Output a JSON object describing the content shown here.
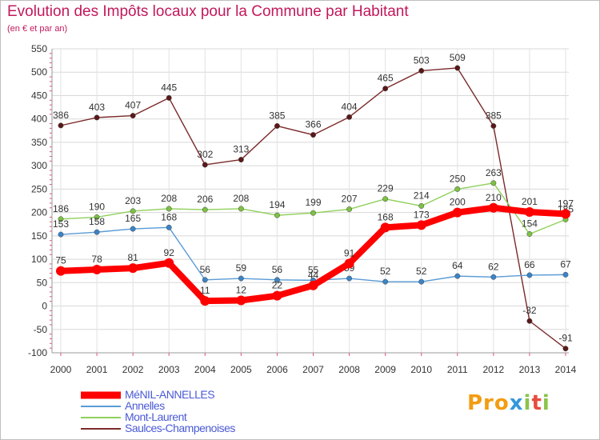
{
  "title": "Evolution des Impôts locaux pour la Commune par Habitant",
  "subtitle": "(en € et par an)",
  "logo": {
    "text": "Proxiti",
    "colors": [
      "#f39c12",
      "#3498db",
      "#8bc34a",
      "#e74c3c"
    ]
  },
  "chart_data": {
    "type": "line",
    "title": "Evolution des Impôts locaux pour la Commune par Habitant",
    "subtitle": "(en € et par an)",
    "x": [
      "2000",
      "2001",
      "2002",
      "2003",
      "2004",
      "2005",
      "2006",
      "2007",
      "2008",
      "2009",
      "2010",
      "2011",
      "2012",
      "2013",
      "2014"
    ],
    "ylim": [
      -100,
      550
    ],
    "yticks": [
      -100,
      -50,
      0,
      50,
      100,
      150,
      200,
      250,
      300,
      350,
      400,
      450,
      500,
      550
    ],
    "grid": true,
    "legend_position": "bottom-left",
    "series": [
      {
        "name": "Saulces-Champenoises",
        "color": "#7b2a2a",
        "marker": "#5a1818",
        "values": [
          386,
          403,
          407,
          445,
          302,
          313,
          385,
          366,
          404,
          465,
          503,
          509,
          385,
          -32,
          -91
        ]
      },
      {
        "name": "Mont-Laurent",
        "color": "#8fd05a",
        "marker": "#7cc242",
        "values": [
          186,
          190,
          203,
          208,
          206,
          208,
          194,
          199,
          207,
          229,
          214,
          250,
          263,
          154,
          185
        ]
      },
      {
        "name": "Annelles",
        "color": "#5a9bd5",
        "marker": "#3a84c8",
        "values": [
          153,
          158,
          165,
          168,
          56,
          59,
          56,
          55,
          59,
          52,
          52,
          64,
          62,
          66,
          67
        ]
      },
      {
        "name": "MéNIL-ANNELLES",
        "color": "#ff0000",
        "marker": "#ff0000",
        "values": [
          75,
          78,
          81,
          92,
          11,
          12,
          22,
          44,
          91,
          168,
          173,
          200,
          210,
          201,
          197
        ]
      }
    ]
  },
  "legend": [
    {
      "label": "MéNIL-ANNELLES",
      "color": "#ff0000"
    },
    {
      "label": "Annelles",
      "color": "#5a9bd5"
    },
    {
      "label": "Mont-Laurent",
      "color": "#8fd05a"
    },
    {
      "label": "Saulces-Champenoises",
      "color": "#7b2a2a"
    }
  ]
}
